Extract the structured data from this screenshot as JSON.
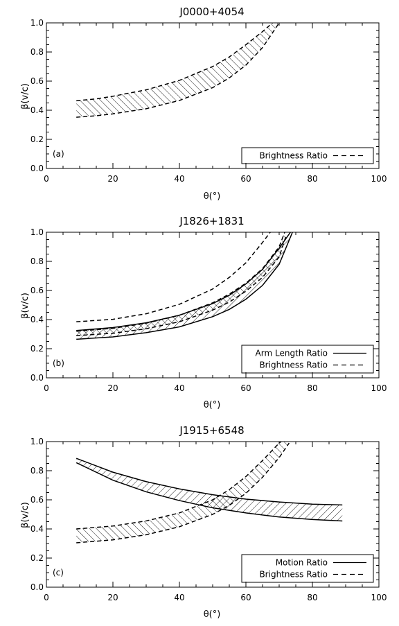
{
  "chart_data": [
    {
      "type": "area",
      "title": "J0000+4054",
      "xlabel": "θ(°)",
      "ylabel": "β(v/c)",
      "xlim": [
        0,
        100
      ],
      "ylim": [
        0.0,
        1.0
      ],
      "xticks": [
        "0",
        "20",
        "40",
        "60",
        "80",
        "100"
      ],
      "yticks": [
        "0.0",
        "0.2",
        "0.4",
        "0.6",
        "0.8",
        "1.0"
      ],
      "panel_label": "(a)",
      "legend_position": "bottom-right",
      "legend": [
        {
          "label": "Brightness Ratio",
          "style": "dashed"
        }
      ],
      "bands": [
        {
          "name": "Brightness Ratio",
          "style": "dashed",
          "hatch": "forward",
          "x": [
            9,
            15,
            20,
            30,
            40,
            50,
            55,
            60,
            65,
            70
          ],
          "upper": [
            0.465,
            0.478,
            0.496,
            0.54,
            0.605,
            0.7,
            0.766,
            0.85,
            0.94,
            1.04
          ],
          "lower": [
            0.352,
            0.362,
            0.375,
            0.41,
            0.467,
            0.555,
            0.622,
            0.71,
            0.83,
            1.0
          ]
        }
      ],
      "lines": []
    },
    {
      "type": "area",
      "title": "J1826+1831",
      "xlabel": "θ(°)",
      "ylabel": "β(v/c)",
      "xlim": [
        0,
        100
      ],
      "ylim": [
        0.0,
        1.0
      ],
      "xticks": [
        "0",
        "20",
        "40",
        "60",
        "80",
        "100"
      ],
      "yticks": [
        "0.0",
        "0.2",
        "0.4",
        "0.6",
        "0.8",
        "1.0"
      ],
      "panel_label": "(b)",
      "legend_position": "bottom-right",
      "legend": [
        {
          "label": "Arm Length Ratio",
          "style": "solid"
        },
        {
          "label": "Brightness Ratio",
          "style": "dashed"
        }
      ],
      "bands": [
        {
          "name": "Arm Length Ratio",
          "style": "solid",
          "hatch": "back",
          "x": [
            9,
            20,
            30,
            40,
            50,
            55,
            60,
            65,
            70,
            74
          ],
          "upper": [
            0.325,
            0.345,
            0.378,
            0.43,
            0.51,
            0.567,
            0.645,
            0.745,
            0.89,
            1.02
          ],
          "lower": [
            0.265,
            0.281,
            0.31,
            0.35,
            0.42,
            0.47,
            0.54,
            0.635,
            0.78,
            1.0
          ]
        },
        {
          "name": "Brightness Ratio",
          "style": "dashed",
          "hatch": "forward",
          "x": [
            9,
            20,
            30,
            40,
            50,
            55,
            60,
            65,
            70,
            72
          ],
          "upper": [
            0.32,
            0.34,
            0.375,
            0.43,
            0.515,
            0.575,
            0.65,
            0.75,
            0.9,
            1.02
          ],
          "lower": [
            0.29,
            0.306,
            0.337,
            0.385,
            0.465,
            0.52,
            0.595,
            0.69,
            0.83,
            0.97
          ]
        }
      ],
      "lines": [
        {
          "name": "Brightness Ratio",
          "style": "dashed",
          "x": [
            9,
            20,
            30,
            40,
            50,
            55,
            60,
            65,
            68
          ],
          "y": [
            0.385,
            0.402,
            0.44,
            0.505,
            0.61,
            0.69,
            0.79,
            0.93,
            1.02
          ]
        }
      ]
    },
    {
      "type": "area",
      "title": "J1915+6548",
      "xlabel": "θ(°)",
      "ylabel": "β(v/c)",
      "xlim": [
        0,
        100
      ],
      "ylim": [
        0.0,
        1.0
      ],
      "xticks": [
        "0",
        "20",
        "40",
        "60",
        "80",
        "100"
      ],
      "yticks": [
        "0.0",
        "0.2",
        "0.4",
        "0.6",
        "0.8",
        "1.0"
      ],
      "panel_label": "(c)",
      "legend_position": "bottom-right",
      "legend": [
        {
          "label": "Motion Ratio",
          "style": "solid"
        },
        {
          "label": "Brightness Ratio",
          "style": "dashed"
        }
      ],
      "bands": [
        {
          "name": "Motion Ratio",
          "style": "solid",
          "hatch": "back",
          "x": [
            9,
            20,
            30,
            40,
            50,
            60,
            70,
            80,
            89
          ],
          "upper": [
            0.885,
            0.79,
            0.725,
            0.675,
            0.635,
            0.605,
            0.585,
            0.57,
            0.565
          ],
          "lower": [
            0.855,
            0.735,
            0.655,
            0.595,
            0.545,
            0.51,
            0.482,
            0.465,
            0.455
          ]
        },
        {
          "name": "Brightness Ratio",
          "style": "dashed",
          "hatch": "forward",
          "x": [
            9,
            20,
            30,
            40,
            50,
            55,
            60,
            65,
            70,
            73
          ],
          "upper": [
            0.4,
            0.42,
            0.455,
            0.51,
            0.6,
            0.67,
            0.76,
            0.87,
            0.99,
            1.04
          ],
          "lower": [
            0.305,
            0.325,
            0.36,
            0.415,
            0.5,
            0.562,
            0.645,
            0.755,
            0.89,
            0.99
          ]
        }
      ],
      "lines": []
    }
  ]
}
